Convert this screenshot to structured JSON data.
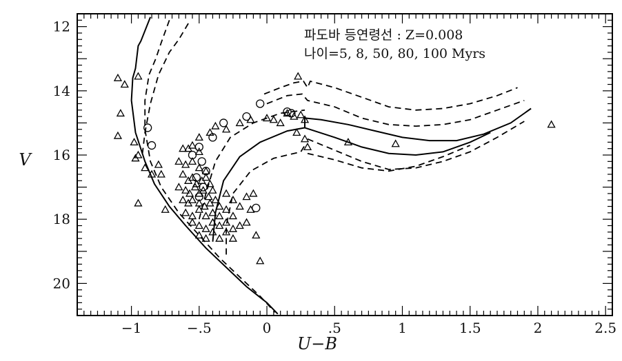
{
  "chart_data": {
    "type": "scatter",
    "xlabel": "U−B",
    "ylabel": "V",
    "xlim": [
      -1.4,
      2.55
    ],
    "ylim": [
      21.0,
      11.6
    ],
    "y_inverted": true,
    "x_ticks": [
      {
        "value": -1,
        "label": "−1"
      },
      {
        "value": -0.5,
        "label": "−.5"
      },
      {
        "value": 0,
        "label": "0"
      },
      {
        "value": 0.5,
        "label": ".5"
      },
      {
        "value": 1,
        "label": "1"
      },
      {
        "value": 1.5,
        "label": "1.5"
      },
      {
        "value": 2,
        "label": "2"
      },
      {
        "value": 2.5,
        "label": "2.5"
      }
    ],
    "y_ticks": [
      {
        "value": 12,
        "label": "12"
      },
      {
        "value": 14,
        "label": "14"
      },
      {
        "value": 16,
        "label": "16"
      },
      {
        "value": 18,
        "label": "18"
      },
      {
        "value": 20,
        "label": "20"
      }
    ],
    "legend": {
      "line1": "파도바 등연령선 : Z=0.008",
      "line2": "나이=5, 8, 50, 80, 100 Myrs"
    },
    "series": [
      {
        "style": "solid",
        "points": [
          [
            -0.86,
            11.7
          ],
          [
            -0.93,
            12.45
          ],
          [
            -0.95,
            12.6
          ],
          [
            -0.97,
            13.3
          ],
          [
            -0.99,
            13.6
          ],
          [
            -1.0,
            14.3
          ],
          [
            -0.97,
            15.3
          ],
          [
            -0.9,
            16.2
          ],
          [
            -0.83,
            16.9
          ],
          [
            -0.72,
            17.6
          ],
          [
            -0.6,
            18.2
          ],
          [
            -0.45,
            18.9
          ],
          [
            -0.3,
            19.5
          ],
          [
            -0.15,
            20.1
          ],
          [
            0.0,
            20.6
          ],
          [
            0.08,
            20.95
          ]
        ]
      },
      {
        "style": "dashed",
        "points": [
          [
            -0.72,
            11.8
          ],
          [
            -0.78,
            12.5
          ],
          [
            -0.82,
            13.0
          ],
          [
            -0.87,
            13.5
          ],
          [
            -0.9,
            14.3
          ],
          [
            -0.9,
            15.2
          ],
          [
            -0.86,
            16.2
          ],
          [
            -0.78,
            17.0
          ],
          [
            -0.65,
            17.8
          ],
          [
            -0.5,
            18.5
          ],
          [
            -0.35,
            19.2
          ],
          [
            -0.2,
            19.8
          ],
          [
            -0.05,
            20.4
          ],
          [
            0.06,
            20.9
          ]
        ]
      },
      {
        "style": "dashed",
        "points": [
          [
            -0.58,
            11.9
          ],
          [
            -0.65,
            12.4
          ],
          [
            -0.72,
            12.8
          ],
          [
            -0.8,
            13.5
          ],
          [
            -0.86,
            14.4
          ],
          [
            -0.9,
            15.3
          ],
          [
            -0.92,
            16.0
          ]
        ]
      },
      {
        "style": "dashed",
        "points": [
          [
            -0.5,
            18.0
          ],
          [
            -0.45,
            17.2
          ],
          [
            -0.38,
            16.2
          ],
          [
            -0.27,
            15.45
          ],
          [
            -0.1,
            15.0
          ],
          [
            0.1,
            14.7
          ],
          [
            0.28,
            14.6
          ]
        ]
      },
      {
        "style": "solid",
        "points": [
          [
            -0.4,
            18.7
          ],
          [
            -0.38,
            17.8
          ],
          [
            -0.32,
            16.8
          ],
          [
            -0.2,
            16.05
          ],
          [
            -0.05,
            15.6
          ],
          [
            0.15,
            15.25
          ],
          [
            0.28,
            15.15
          ],
          [
            0.28,
            14.85
          ]
        ]
      },
      {
        "style": "dashed",
        "points": [
          [
            -0.3,
            19.1
          ],
          [
            -0.3,
            18.2
          ],
          [
            -0.25,
            17.2
          ],
          [
            -0.12,
            16.5
          ],
          [
            0.05,
            16.1
          ],
          [
            0.25,
            15.9
          ],
          [
            0.28,
            15.7
          ]
        ]
      },
      {
        "style": "solid",
        "points": [
          [
            0.28,
            14.85
          ],
          [
            0.4,
            14.9
          ],
          [
            0.6,
            15.05
          ],
          [
            0.8,
            15.25
          ],
          [
            1.0,
            15.45
          ],
          [
            1.2,
            15.55
          ],
          [
            1.4,
            15.55
          ],
          [
            1.6,
            15.35
          ],
          [
            1.8,
            15.0
          ],
          [
            1.95,
            14.55
          ]
        ]
      },
      {
        "style": "solid",
        "points": [
          [
            0.28,
            15.15
          ],
          [
            0.5,
            15.45
          ],
          [
            0.7,
            15.75
          ],
          [
            0.9,
            15.95
          ],
          [
            1.1,
            16.0
          ],
          [
            1.3,
            15.9
          ],
          [
            1.5,
            15.6
          ],
          [
            1.65,
            15.3
          ]
        ]
      },
      {
        "style": "dashed",
        "points": [
          [
            -0.02,
            14.1
          ],
          [
            0.1,
            13.9
          ],
          [
            0.2,
            13.75
          ],
          [
            0.27,
            13.7
          ],
          [
            0.3,
            13.9
          ],
          [
            0.32,
            13.7
          ],
          [
            0.5,
            13.9
          ],
          [
            0.7,
            14.2
          ],
          [
            0.9,
            14.5
          ],
          [
            1.1,
            14.6
          ],
          [
            1.3,
            14.55
          ],
          [
            1.5,
            14.4
          ],
          [
            1.7,
            14.15
          ],
          [
            1.85,
            13.9
          ]
        ]
      },
      {
        "style": "dashed",
        "points": [
          [
            0.0,
            14.4
          ],
          [
            0.15,
            14.15
          ],
          [
            0.26,
            14.1
          ],
          [
            0.3,
            14.3
          ],
          [
            0.5,
            14.5
          ],
          [
            0.7,
            14.85
          ],
          [
            0.9,
            15.05
          ],
          [
            1.1,
            15.1
          ],
          [
            1.3,
            15.05
          ],
          [
            1.5,
            14.9
          ],
          [
            1.7,
            14.6
          ],
          [
            1.9,
            14.3
          ]
        ]
      },
      {
        "style": "dashed",
        "points": [
          [
            0.3,
            15.5
          ],
          [
            0.5,
            15.85
          ],
          [
            0.7,
            16.2
          ],
          [
            0.9,
            16.45
          ],
          [
            1.1,
            16.4
          ],
          [
            1.3,
            16.2
          ],
          [
            1.5,
            15.9
          ],
          [
            1.7,
            15.45
          ],
          [
            1.9,
            14.95
          ]
        ]
      },
      {
        "style": "dashed",
        "points": [
          [
            0.3,
            15.95
          ],
          [
            0.5,
            16.15
          ],
          [
            0.7,
            16.4
          ],
          [
            0.9,
            16.5
          ],
          [
            1.1,
            16.35
          ],
          [
            1.3,
            16.05
          ],
          [
            1.5,
            15.7
          ]
        ]
      }
    ],
    "stars_triangle": [
      [
        -1.1,
        13.6
      ],
      [
        -1.05,
        13.8
      ],
      [
        -0.95,
        13.55
      ],
      [
        -1.08,
        14.7
      ],
      [
        -1.1,
        15.4
      ],
      [
        -0.98,
        15.6
      ],
      [
        -0.95,
        16.0
      ],
      [
        -0.97,
        16.1
      ],
      [
        -0.9,
        16.4
      ],
      [
        -0.85,
        16.6
      ],
      [
        -0.8,
        16.3
      ],
      [
        -0.78,
        16.6
      ],
      [
        -0.95,
        17.5
      ],
      [
        -0.75,
        17.7
      ],
      [
        -0.62,
        15.8
      ],
      [
        -0.58,
        15.8
      ],
      [
        -0.55,
        15.7
      ],
      [
        -0.5,
        15.9
      ],
      [
        -0.65,
        16.2
      ],
      [
        -0.6,
        16.3
      ],
      [
        -0.55,
        16.2
      ],
      [
        -0.5,
        16.4
      ],
      [
        -0.45,
        16.5
      ],
      [
        -0.62,
        16.6
      ],
      [
        -0.58,
        16.8
      ],
      [
        -0.55,
        16.7
      ],
      [
        -0.52,
        16.9
      ],
      [
        -0.48,
        16.8
      ],
      [
        -0.45,
        16.7
      ],
      [
        -0.42,
        16.9
      ],
      [
        -0.65,
        17.0
      ],
      [
        -0.6,
        17.1
      ],
      [
        -0.57,
        17.2
      ],
      [
        -0.53,
        17.0
      ],
      [
        -0.5,
        17.2
      ],
      [
        -0.47,
        17.1
      ],
      [
        -0.43,
        17.3
      ],
      [
        -0.4,
        17.1
      ],
      [
        -0.62,
        17.4
      ],
      [
        -0.58,
        17.5
      ],
      [
        -0.55,
        17.4
      ],
      [
        -0.5,
        17.5
      ],
      [
        -0.46,
        17.6
      ],
      [
        -0.42,
        17.5
      ],
      [
        -0.38,
        17.4
      ],
      [
        -0.35,
        17.6
      ],
      [
        -0.6,
        17.8
      ],
      [
        -0.55,
        17.9
      ],
      [
        -0.5,
        17.7
      ],
      [
        -0.45,
        17.9
      ],
      [
        -0.4,
        17.8
      ],
      [
        -0.35,
        17.9
      ],
      [
        -0.3,
        17.7
      ],
      [
        -0.25,
        17.9
      ],
      [
        -0.2,
        17.6
      ],
      [
        -0.55,
        18.1
      ],
      [
        -0.5,
        18.2
      ],
      [
        -0.45,
        18.3
      ],
      [
        -0.4,
        18.1
      ],
      [
        -0.35,
        18.2
      ],
      [
        -0.3,
        18.1
      ],
      [
        -0.25,
        18.3
      ],
      [
        -0.2,
        18.2
      ],
      [
        -0.15,
        18.1
      ],
      [
        -0.5,
        18.5
      ],
      [
        -0.45,
        18.6
      ],
      [
        -0.4,
        18.4
      ],
      [
        -0.35,
        18.6
      ],
      [
        -0.3,
        18.4
      ],
      [
        -0.25,
        18.6
      ],
      [
        -0.3,
        17.2
      ],
      [
        -0.25,
        17.4
      ],
      [
        -0.15,
        17.3
      ],
      [
        -0.12,
        17.7
      ],
      [
        -0.08,
        18.5
      ],
      [
        -0.1,
        17.2
      ],
      [
        -0.05,
        19.3
      ],
      [
        -0.5,
        15.45
      ],
      [
        -0.42,
        15.3
      ],
      [
        -0.38,
        15.1
      ],
      [
        -0.3,
        15.2
      ],
      [
        -0.2,
        15.0
      ],
      [
        -0.12,
        14.9
      ],
      [
        0.0,
        14.85
      ],
      [
        0.05,
        14.9
      ],
      [
        0.1,
        15.0
      ],
      [
        0.15,
        14.7
      ],
      [
        0.2,
        14.8
      ],
      [
        0.25,
        14.75
      ],
      [
        0.28,
        14.9
      ],
      [
        0.22,
        15.3
      ],
      [
        0.28,
        15.5
      ],
      [
        0.3,
        15.75
      ],
      [
        0.23,
        13.55
      ],
      [
        0.6,
        15.6
      ],
      [
        0.95,
        15.65
      ],
      [
        2.1,
        15.05
      ]
    ],
    "stars_circle": [
      [
        -0.88,
        15.15
      ],
      [
        -0.85,
        15.7
      ],
      [
        -0.5,
        15.75
      ],
      [
        -0.55,
        16.0
      ],
      [
        -0.48,
        16.2
      ],
      [
        -0.45,
        16.5
      ],
      [
        -0.52,
        16.7
      ],
      [
        -0.47,
        17.0
      ],
      [
        -0.4,
        15.45
      ],
      [
        -0.32,
        15.0
      ],
      [
        -0.15,
        14.8
      ],
      [
        -0.05,
        14.4
      ],
      [
        0.15,
        14.65
      ],
      [
        0.18,
        14.7
      ],
      [
        -0.08,
        17.65
      ],
      [
        -0.5,
        17.3
      ]
    ]
  }
}
